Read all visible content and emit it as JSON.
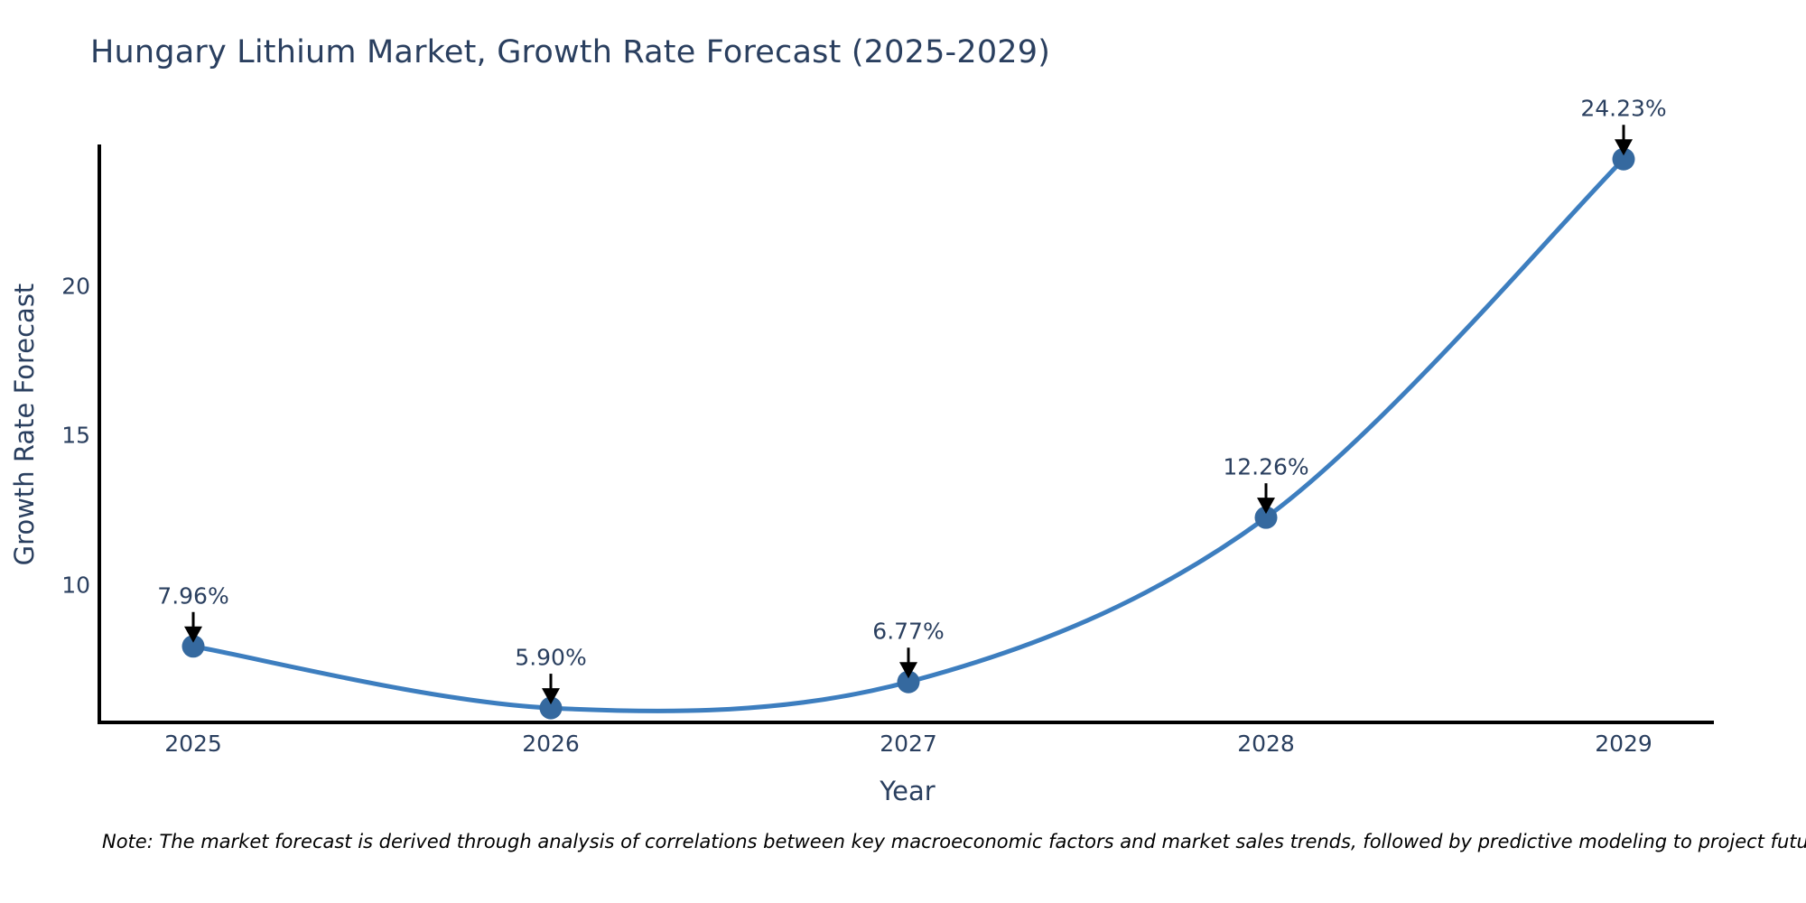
{
  "title": "Hungary Lithium Market, Growth Rate Forecast (2025-2029)",
  "note": "Note: The market forecast is derived through analysis of correlations between key macroeconomic factors and market sales trends, followed by predictive modeling to project future sales.",
  "chart_data": {
    "type": "line",
    "line_shape": "spline",
    "title": "Hungary Lithium Market, Growth Rate Forecast (2025-2029)",
    "xlabel": "Year",
    "ylabel": "Growth Rate Forecast",
    "categories": [
      "2025",
      "2026",
      "2027",
      "2028",
      "2029"
    ],
    "values": [
      7.96,
      5.9,
      6.77,
      12.26,
      24.23
    ],
    "point_labels": [
      "7.96%",
      "5.90%",
      "6.77%",
      "12.26%",
      "24.23%"
    ],
    "yticks": [
      10,
      15,
      20
    ],
    "ylim": [
      5.42,
      24.72
    ],
    "grid": false,
    "legend": "none",
    "markers": true,
    "annotations_have_arrows": true,
    "colors": {
      "line": "#3d7ebf",
      "marker": "#35699f",
      "arrow": "#000000",
      "spine": "#000000",
      "text": "#2a3f5f",
      "note_text": "#000000",
      "background": "#ffffff"
    }
  }
}
